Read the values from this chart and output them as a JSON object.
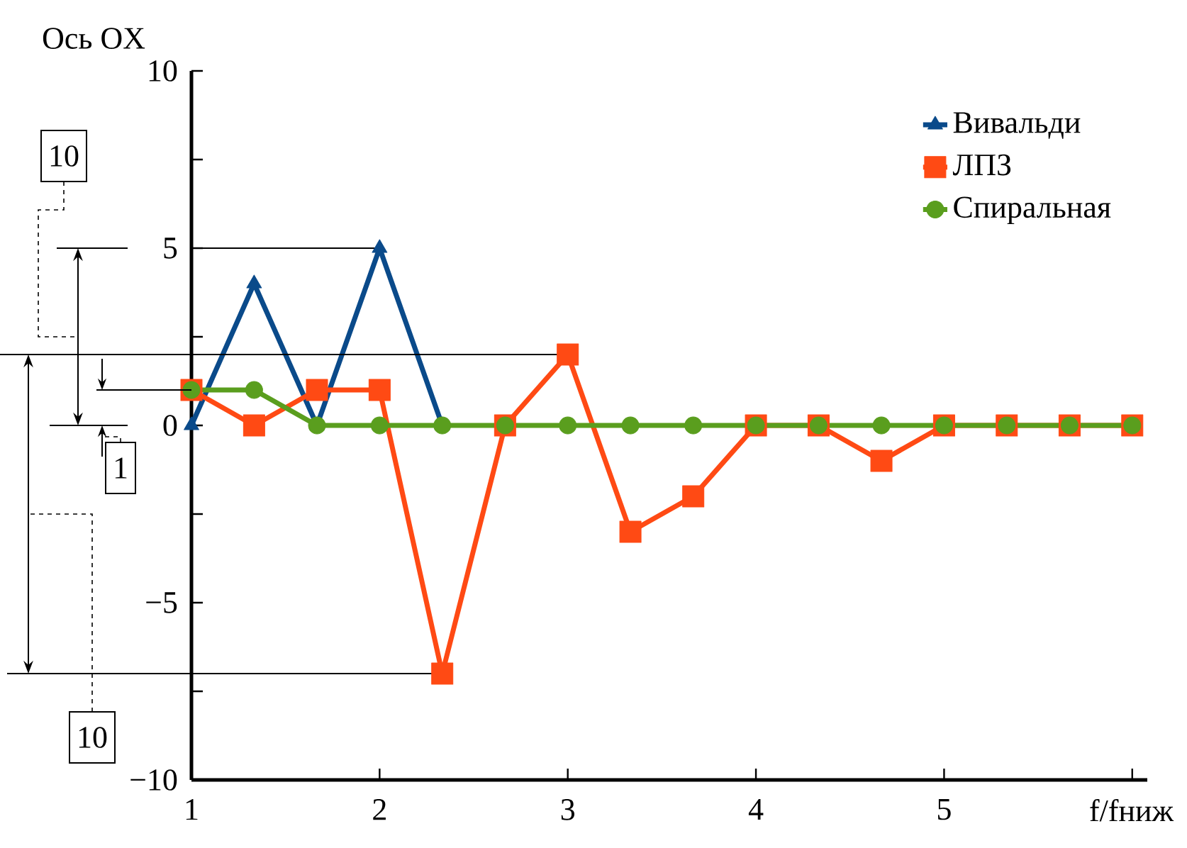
{
  "chart_data": {
    "type": "line",
    "ylabel": "Ось OX",
    "xlabel": "f/fниж",
    "x": [
      1,
      1.333,
      1.667,
      2,
      2.333,
      2.667,
      3,
      3.333,
      3.667,
      4,
      4.333,
      4.667,
      5,
      5.333,
      5.667,
      6
    ],
    "series": [
      {
        "name": "Вивальди",
        "color": "#0a4a8a",
        "marker": "triangle",
        "values": [
          0,
          4,
          0,
          5,
          0,
          null,
          null,
          null,
          null,
          null,
          null,
          null,
          null,
          null,
          null,
          null
        ]
      },
      {
        "name": "ЛПЗ",
        "color": "#ff4a14",
        "marker": "square",
        "values": [
          1,
          0,
          1,
          1,
          -7,
          0,
          2,
          -3,
          -2,
          0,
          0,
          -1,
          0,
          0,
          0,
          0
        ]
      },
      {
        "name": "Спиральная",
        "color": "#5a9e1e",
        "marker": "circle",
        "values": [
          1,
          1,
          0,
          0,
          0,
          0,
          0,
          0,
          0,
          0,
          0,
          0,
          0,
          0,
          0,
          0
        ]
      }
    ],
    "xlim": [
      1,
      6.08
    ],
    "ylim": [
      -10,
      10
    ],
    "xticks": [
      1,
      2,
      3,
      4,
      5,
      {
        "value": 6,
        "label": null
      }
    ],
    "yticks": [
      {
        "value": -10,
        "label": "−10"
      },
      {
        "value": -7.5,
        "label": null
      },
      {
        "value": -5,
        "label": "−5"
      },
      {
        "value": -2.5,
        "label": null
      },
      0,
      {
        "value": 2.5,
        "label": null
      },
      5,
      {
        "value": 7.5,
        "label": null
      },
      10
    ],
    "legend": "top right",
    "grid": false,
    "line_style": "solid",
    "ref_lines": [
      {
        "axis": "y",
        "value": 5
      },
      {
        "axis": "y",
        "value": 2
      },
      {
        "axis": "y",
        "value": -7
      }
    ],
    "annotations": [
      "10",
      "1",
      "10"
    ]
  }
}
